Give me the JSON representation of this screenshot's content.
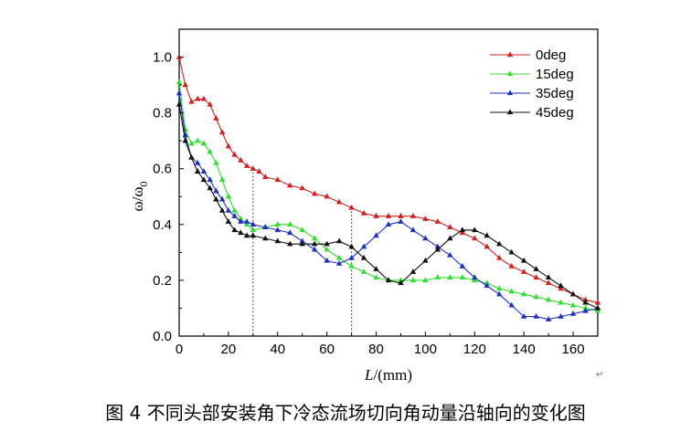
{
  "chart_data": {
    "type": "line",
    "title": "",
    "xlabel_italic": "L",
    "xlabel_unit": "/(mm)",
    "ylabel_main": "ω/ω",
    "ylabel_sub": "0",
    "xlim": [
      0,
      170
    ],
    "ylim": [
      0,
      1.1
    ],
    "xticks": [
      0,
      20,
      40,
      60,
      80,
      100,
      120,
      140,
      160
    ],
    "yticks": [
      0.0,
      0.2,
      0.4,
      0.6,
      0.8,
      1.0
    ],
    "ytick_labels": [
      "0.0",
      "0.2",
      "0.4",
      "0.6",
      "0.8",
      "1.0"
    ],
    "vlines": [
      30,
      70
    ],
    "legend_position": "top-right",
    "series": [
      {
        "name": "0deg",
        "color": "#cc2222",
        "x": [
          0,
          2.5,
          5,
          7.5,
          10,
          12.5,
          15,
          17.5,
          20,
          22.5,
          25,
          27.5,
          30,
          32.5,
          35,
          40,
          45,
          50,
          55,
          60,
          65,
          70,
          75,
          80,
          85,
          90,
          95,
          100,
          105,
          110,
          115,
          120,
          125,
          130,
          135,
          140,
          145,
          150,
          155,
          160,
          165,
          170
        ],
        "y": [
          1.0,
          0.9,
          0.84,
          0.85,
          0.85,
          0.83,
          0.78,
          0.73,
          0.68,
          0.65,
          0.63,
          0.61,
          0.6,
          0.59,
          0.57,
          0.56,
          0.54,
          0.53,
          0.51,
          0.5,
          0.48,
          0.46,
          0.44,
          0.43,
          0.43,
          0.43,
          0.43,
          0.42,
          0.41,
          0.39,
          0.37,
          0.35,
          0.32,
          0.28,
          0.25,
          0.23,
          0.21,
          0.19,
          0.17,
          0.15,
          0.13,
          0.12
        ]
      },
      {
        "name": "15deg",
        "color": "#33dd33",
        "x": [
          0,
          2.5,
          5,
          7.5,
          10,
          12.5,
          15,
          17.5,
          20,
          22.5,
          25,
          27.5,
          30,
          35,
          40,
          45,
          50,
          55,
          60,
          65,
          70,
          75,
          80,
          85,
          90,
          95,
          100,
          105,
          110,
          115,
          120,
          125,
          130,
          135,
          140,
          145,
          150,
          155,
          160,
          165,
          170
        ],
        "y": [
          0.91,
          0.74,
          0.69,
          0.7,
          0.69,
          0.66,
          0.62,
          0.56,
          0.5,
          0.45,
          0.42,
          0.4,
          0.38,
          0.39,
          0.4,
          0.4,
          0.38,
          0.35,
          0.31,
          0.28,
          0.25,
          0.23,
          0.21,
          0.2,
          0.2,
          0.2,
          0.2,
          0.21,
          0.21,
          0.21,
          0.2,
          0.19,
          0.17,
          0.16,
          0.15,
          0.14,
          0.13,
          0.12,
          0.11,
          0.1,
          0.09
        ]
      },
      {
        "name": "35deg",
        "color": "#1f2fbb",
        "x": [
          0,
          2.5,
          5,
          7.5,
          10,
          12.5,
          15,
          17.5,
          20,
          22.5,
          25,
          27.5,
          30,
          35,
          40,
          45,
          50,
          55,
          60,
          65,
          70,
          75,
          80,
          85,
          90,
          95,
          100,
          105,
          110,
          115,
          120,
          125,
          130,
          135,
          140,
          145,
          150,
          155,
          160,
          165,
          170
        ],
        "y": [
          0.87,
          0.72,
          0.64,
          0.62,
          0.59,
          0.56,
          0.52,
          0.49,
          0.45,
          0.43,
          0.41,
          0.41,
          0.4,
          0.39,
          0.38,
          0.37,
          0.34,
          0.31,
          0.27,
          0.26,
          0.28,
          0.32,
          0.36,
          0.4,
          0.41,
          0.38,
          0.35,
          0.32,
          0.29,
          0.25,
          0.21,
          0.18,
          0.15,
          0.11,
          0.07,
          0.07,
          0.06,
          0.07,
          0.08,
          0.09,
          0.1
        ]
      },
      {
        "name": "45deg",
        "color": "#111111",
        "x": [
          0,
          2.5,
          5,
          7.5,
          10,
          12.5,
          15,
          17.5,
          20,
          22.5,
          25,
          27.5,
          30,
          35,
          40,
          45,
          50,
          55,
          60,
          65,
          70,
          75,
          80,
          85,
          90,
          95,
          100,
          105,
          110,
          115,
          120,
          125,
          130,
          135,
          140,
          145,
          150,
          155,
          160,
          165,
          170
        ],
        "y": [
          0.83,
          0.7,
          0.64,
          0.59,
          0.56,
          0.53,
          0.49,
          0.45,
          0.41,
          0.38,
          0.37,
          0.36,
          0.36,
          0.35,
          0.34,
          0.33,
          0.33,
          0.33,
          0.33,
          0.34,
          0.32,
          0.28,
          0.24,
          0.2,
          0.19,
          0.23,
          0.27,
          0.31,
          0.35,
          0.38,
          0.38,
          0.36,
          0.33,
          0.3,
          0.27,
          0.24,
          0.21,
          0.18,
          0.15,
          0.12,
          0.1
        ]
      }
    ]
  },
  "caption": "图 4 不同头部安装角下冷态流场切向角动量沿轴向的变化图",
  "return_mark": "↵"
}
